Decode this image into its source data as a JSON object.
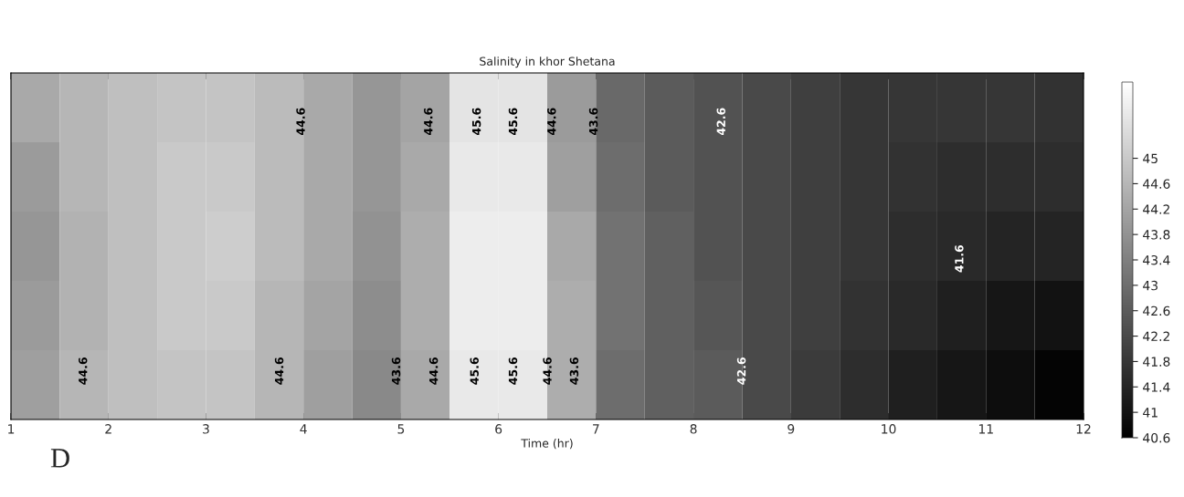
{
  "chart_data": {
    "type": "heatmap",
    "title": "Salinity in khor Shetana",
    "xlabel": "Time (hr)",
    "x": [
      1.25,
      1.75,
      2.25,
      2.75,
      3.25,
      3.75,
      4.25,
      4.75,
      5.25,
      5.75,
      6.25,
      6.75,
      7.25,
      7.75,
      8.25,
      8.75,
      9.25,
      9.75,
      10.25,
      10.75,
      11.25,
      11.75
    ],
    "y_categories": [
      null,
      null,
      null,
      null,
      null
    ],
    "cells": [
      [
        44.3,
        44.6,
        44.8,
        44.9,
        44.9,
        44.7,
        44.3,
        43.9,
        44.2,
        45.6,
        45.6,
        44.0,
        42.9,
        42.6,
        42.4,
        42.2,
        42.0,
        41.8,
        41.8,
        41.8,
        41.8,
        41.7
      ],
      [
        44.0,
        44.6,
        44.8,
        45.0,
        45.0,
        44.7,
        44.3,
        43.9,
        44.3,
        45.7,
        45.7,
        44.1,
        43.0,
        42.6,
        42.4,
        42.2,
        42.0,
        41.8,
        41.7,
        41.6,
        41.6,
        41.6
      ],
      [
        43.9,
        44.5,
        44.8,
        45.0,
        45.1,
        44.7,
        44.3,
        43.8,
        44.4,
        45.8,
        45.8,
        44.3,
        43.1,
        42.7,
        42.4,
        42.2,
        42.0,
        41.8,
        41.6,
        41.5,
        41.4,
        41.4
      ],
      [
        44.0,
        44.5,
        44.8,
        45.0,
        45.0,
        44.6,
        44.2,
        43.7,
        44.4,
        45.8,
        45.8,
        44.4,
        43.1,
        42.7,
        42.5,
        42.2,
        42.0,
        41.7,
        41.5,
        41.3,
        41.1,
        41.0
      ],
      [
        44.1,
        44.6,
        44.8,
        44.9,
        44.9,
        44.6,
        44.1,
        43.6,
        44.3,
        45.7,
        45.7,
        44.4,
        43.0,
        42.7,
        42.6,
        42.2,
        41.9,
        41.6,
        41.3,
        41.1,
        40.9,
        40.7
      ]
    ],
    "xlim": [
      1,
      12
    ],
    "xticks": [
      1,
      2,
      3,
      4,
      5,
      6,
      7,
      8,
      9,
      10,
      11,
      12
    ],
    "tick_labels": "x",
    "clim": [
      40.6,
      46.2
    ],
    "cticks": [
      40.6,
      41,
      41.4,
      41.8,
      42.2,
      42.6,
      43,
      43.4,
      43.8,
      44.2,
      44.6,
      45
    ],
    "annotations": [
      "44.6",
      "44.6",
      "44.6",
      "44.6",
      "43.6",
      "45.6",
      "44.6",
      "45.6",
      "45.6",
      "44.6",
      "45.6",
      "43.6",
      "44.6",
      "42.6",
      "43.6",
      "41.6",
      "42.6",
      "D"
    ]
  }
}
